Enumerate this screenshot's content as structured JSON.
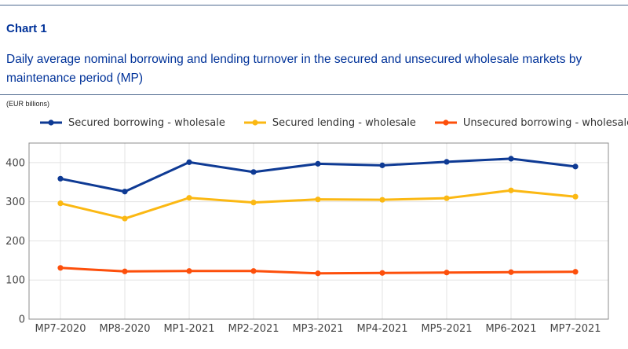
{
  "header": {
    "chart_label": "Chart 1",
    "title": "Daily average nominal borrowing and lending turnover in the secured and unsecured wholesale markets by maintenance period (MP)",
    "unit": "(EUR billions)"
  },
  "chart_data": {
    "type": "line",
    "title": "",
    "xlabel": "",
    "ylabel": "",
    "unit": "EUR billions",
    "categories": [
      "MP7-2020",
      "MP8-2020",
      "MP1-2021",
      "MP2-2021",
      "MP3-2021",
      "MP4-2021",
      "MP5-2021",
      "MP6-2021",
      "MP7-2021"
    ],
    "ylim": [
      0,
      450
    ],
    "yticks": [
      0,
      100,
      200,
      300,
      400
    ],
    "grid": true,
    "legend_position": "top",
    "series": [
      {
        "name": "Secured borrowing - wholesale",
        "color": "#0e3a94",
        "values": [
          359,
          326,
          401,
          376,
          397,
          393,
          402,
          410,
          390
        ]
      },
      {
        "name": "Secured lending - wholesale",
        "color": "#fbb813",
        "values": [
          296,
          257,
          310,
          298,
          306,
          305,
          309,
          329,
          313
        ]
      },
      {
        "name": "Unsecured borrowing - wholesale",
        "color": "#fd4f0b",
        "values": [
          131,
          122,
          123,
          123,
          117,
          118,
          119,
          120,
          121
        ]
      }
    ]
  }
}
